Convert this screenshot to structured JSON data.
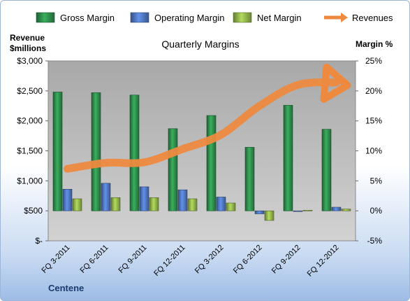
{
  "chart_data": {
    "type": "bar",
    "title": "Quarterly Margins",
    "company": "Centene",
    "ylabel_left": [
      "Revenue",
      "$millions"
    ],
    "ylabel_right": "Margin %",
    "ylim_left": [
      0,
      3000
    ],
    "ylim_right": [
      -5,
      25
    ],
    "left_ticks": [
      {
        "v": 0,
        "label": "$-"
      },
      {
        "v": 500,
        "label": "$500"
      },
      {
        "v": 1000,
        "label": "$1,000"
      },
      {
        "v": 1500,
        "label": "$1,500"
      },
      {
        "v": 2000,
        "label": "$2,000"
      },
      {
        "v": 2500,
        "label": "$2,500"
      },
      {
        "v": 3000,
        "label": "$3,000"
      }
    ],
    "right_ticks": [
      {
        "v": -5,
        "label": "-5%"
      },
      {
        "v": 0,
        "label": "0%"
      },
      {
        "v": 5,
        "label": "5%"
      },
      {
        "v": 10,
        "label": "10%"
      },
      {
        "v": 15,
        "label": "15%"
      },
      {
        "v": 20,
        "label": "20%"
      },
      {
        "v": 25,
        "label": "25%"
      }
    ],
    "categories": [
      "FQ 3-2011",
      "FQ 6-2011",
      "FQ 9-2011",
      "FQ 12-2011",
      "FQ 3-2012",
      "FQ 6-2012",
      "FQ 9-2012",
      "FQ 12-2012"
    ],
    "series": [
      {
        "name": "Gross Margin",
        "axis": "right",
        "kind": "bar",
        "color": "#2e8b4a",
        "values": [
          19.8,
          19.7,
          19.3,
          13.7,
          15.9,
          10.6,
          17.6,
          13.6
        ]
      },
      {
        "name": "Operating Margin",
        "axis": "right",
        "kind": "bar",
        "color": "#4e74bc",
        "values": [
          3.6,
          4.6,
          4.0,
          3.5,
          2.3,
          -0.5,
          -0.1,
          0.6
        ]
      },
      {
        "name": "Net Margin",
        "axis": "right",
        "kind": "bar",
        "color": "#8fb04a",
        "values": [
          2.0,
          2.2,
          2.2,
          2.0,
          1.3,
          -1.6,
          0.1,
          0.3
        ]
      },
      {
        "name": "Revenues",
        "axis": "left",
        "kind": "arrow-line",
        "color": "#ed8a3f",
        "values": [
          1200,
          1300,
          1310,
          1530,
          1770,
          2250,
          2600,
          2640
        ]
      }
    ],
    "legend_position": "top",
    "grid": false
  }
}
